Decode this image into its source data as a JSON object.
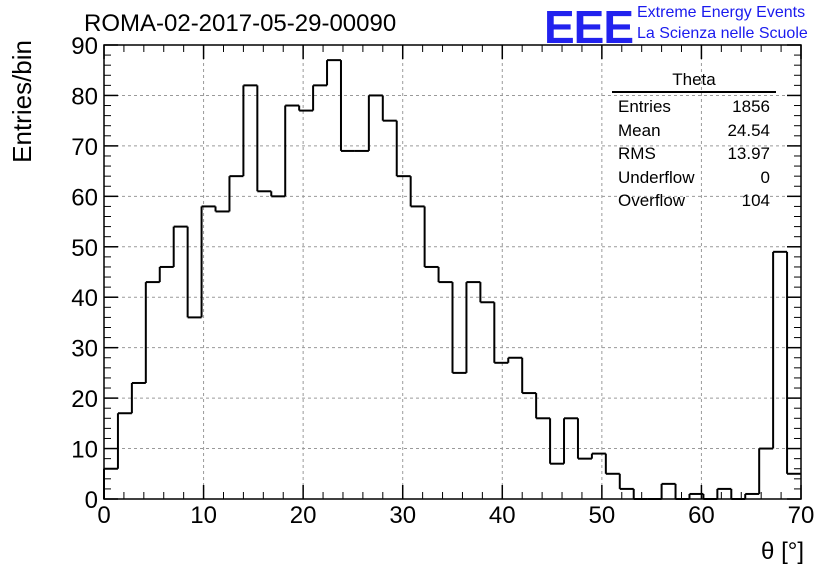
{
  "header": {
    "title": "ROMA-02-2017-05-29-00090",
    "logo_text": "EEE",
    "logo_line1": "Extreme Energy Events",
    "logo_line2": "La Scienza nelle Scuole"
  },
  "colors": {
    "logo": "#2222ee",
    "line": "#000000",
    "grid": "#9a9a9a"
  },
  "stats": {
    "title": "Theta",
    "rows": [
      {
        "label": "Entries",
        "value": "1856"
      },
      {
        "label": "Mean",
        "value": "24.54"
      },
      {
        "label": "RMS",
        "value": "13.97"
      },
      {
        "label": "Underflow",
        "value": "0"
      },
      {
        "label": "Overflow",
        "value": "104"
      }
    ]
  },
  "chart_data": {
    "type": "histogram",
    "xlabel": "θ [°]",
    "ylabel": "Entries/bin",
    "xlim": [
      0,
      70
    ],
    "ylim": [
      0,
      90
    ],
    "bin_width": 1.4,
    "x_ticks": [
      0,
      10,
      20,
      30,
      40,
      50,
      60,
      70
    ],
    "y_ticks": [
      0,
      10,
      20,
      30,
      40,
      50,
      60,
      70,
      80,
      90
    ],
    "grid": true,
    "values": [
      6,
      17,
      23,
      43,
      46,
      54,
      36,
      58,
      57,
      64,
      82,
      61,
      60,
      78,
      77,
      82,
      87,
      69,
      69,
      80,
      75,
      64,
      58,
      46,
      43,
      25,
      43,
      39,
      27,
      28,
      21,
      16,
      7,
      16,
      8,
      9,
      5,
      2,
      0,
      0,
      3,
      0,
      1,
      0,
      2,
      0,
      1,
      10,
      49,
      5
    ]
  }
}
